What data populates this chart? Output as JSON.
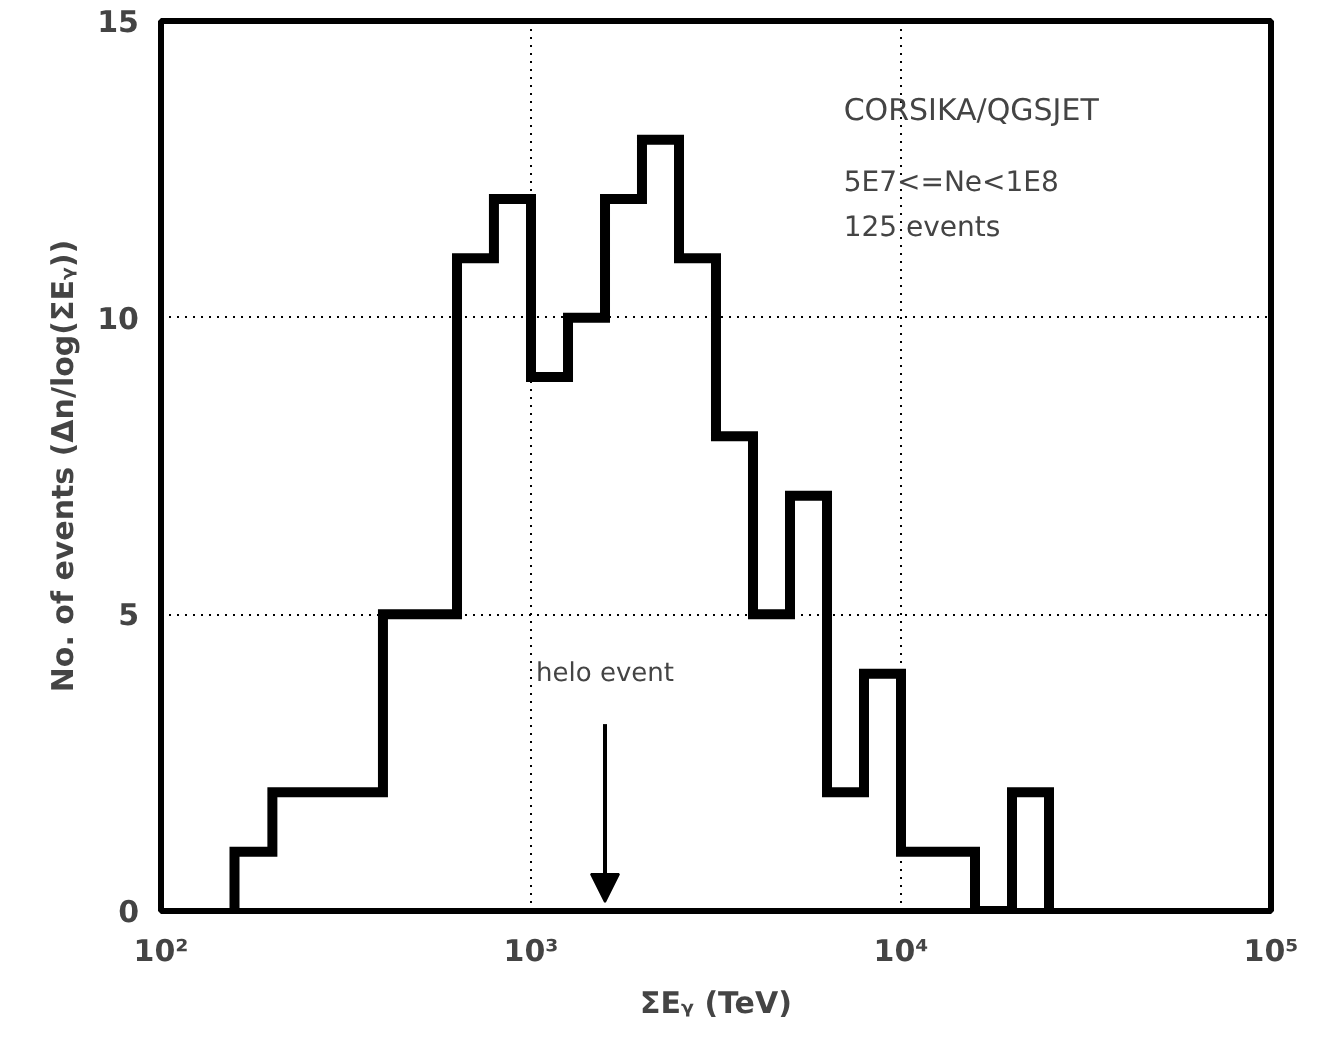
{
  "chart_data": {
    "type": "histogram",
    "xlabel": "ΣEᵧ (TeV)",
    "ylabel": "No. of events (Δn/log(ΣEᵧ))",
    "bins": [
      158,
      200,
      251,
      316,
      398,
      501,
      631,
      794,
      1000,
      1259,
      1585,
      1995,
      2512,
      3162,
      3981,
      5012,
      6310,
      7943,
      10000,
      12589,
      15849,
      19953,
      25119
    ],
    "values": [
      1,
      2,
      2,
      2,
      5,
      5,
      11,
      12,
      9,
      10,
      12,
      13,
      11,
      8,
      5,
      7,
      2,
      4,
      1,
      1,
      0,
      2
    ],
    "color": "#000000",
    "log": "x",
    "xlim": [
      100,
      100000
    ],
    "xticks": [
      {
        "value": 100,
        "label": "10²"
      },
      {
        "value": 1000,
        "label": "10³"
      },
      {
        "value": 10000,
        "label": "10⁴"
      },
      {
        "value": 100000,
        "label": "10⁵"
      }
    ],
    "ylim": [
      0,
      15
    ],
    "yticks": [
      0,
      5,
      10,
      15
    ],
    "grid": true,
    "line_style": "solid",
    "annotations": [
      "CORSIKA/QGSJET",
      "5E7<=Ne<1E8",
      "125 events",
      "helo event"
    ]
  }
}
